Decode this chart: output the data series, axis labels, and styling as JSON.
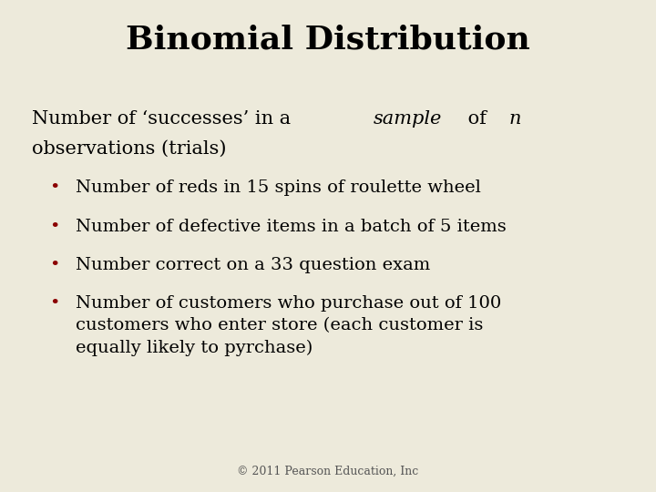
{
  "title": "Binomial Distribution",
  "background_color": "#EDEADB",
  "title_color": "#000000",
  "title_fontsize": 26,
  "title_fontweight": "bold",
  "subtitle_fontsize": 15,
  "subtitle_color": "#000000",
  "bullet_color": "#8B0000",
  "bullet_text_color": "#000000",
  "bullet_fontsize": 14,
  "bullets": [
    "Number of reds in 15 spins of roulette wheel",
    "Number of defective items in a batch of 5 items",
    "Number correct on a 33 question exam",
    "Number of customers who purchase out of 100\ncustomers who enter store (each customer is\nequally likely to pyrchase)"
  ],
  "footer": "© 2011 Pearson Education, Inc",
  "footer_fontsize": 9,
  "footer_color": "#555555"
}
